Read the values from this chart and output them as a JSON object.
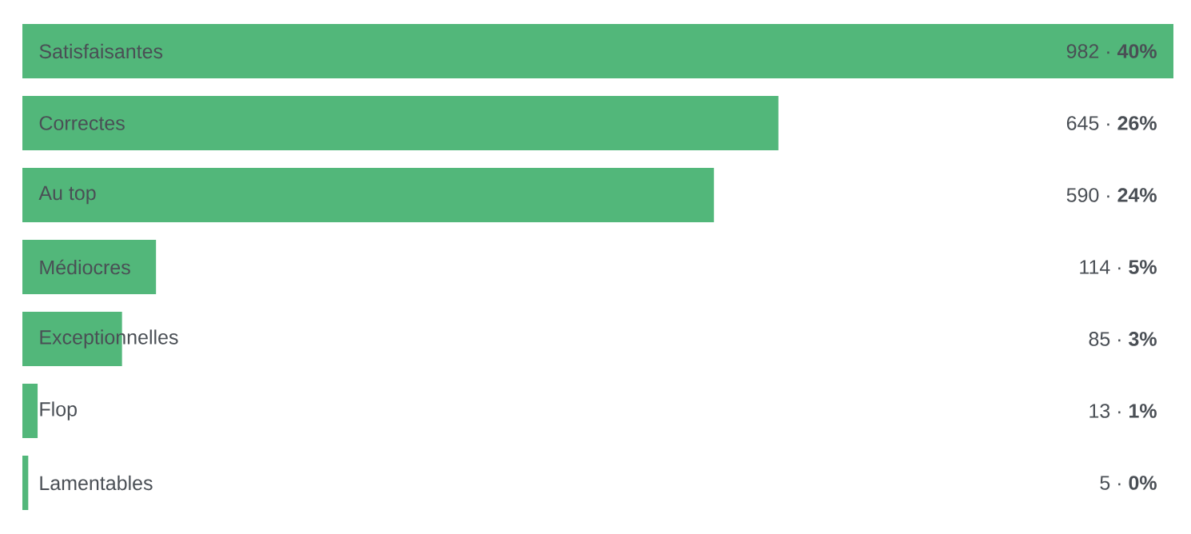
{
  "chart_data": {
    "type": "bar",
    "orientation": "horizontal",
    "categories": [
      "Satisfaisantes",
      "Correctes",
      "Au top",
      "Médiocres",
      "Exceptionnelles",
      "Flop",
      "Lamentables"
    ],
    "values": [
      982,
      645,
      590,
      114,
      85,
      13,
      5
    ],
    "color": "#52b77a",
    "value_labels": [
      "982 ·  **40%**",
      "645 ·  **26%**",
      "590 ·  **24%**",
      "114 ·  **5%**",
      "85 ·  **3%**",
      "13 ·  **1%**",
      "5 ·  **0%**"
    ]
  }
}
